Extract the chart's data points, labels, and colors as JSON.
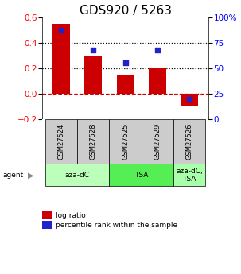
{
  "title": "GDS920 / 5263",
  "samples": [
    "GSM27524",
    "GSM27528",
    "GSM27525",
    "GSM27529",
    "GSM27526"
  ],
  "log_ratios": [
    0.55,
    0.3,
    0.15,
    0.2,
    -0.1
  ],
  "percentile_ranks": [
    88,
    68,
    56,
    68,
    20
  ],
  "bar_color": "#cc0000",
  "dot_color": "#2222cc",
  "ylim_left": [
    -0.2,
    0.6
  ],
  "ylim_right": [
    0,
    100
  ],
  "yticks_left": [
    -0.2,
    0.0,
    0.2,
    0.4,
    0.6
  ],
  "yticks_right": [
    0,
    25,
    50,
    75,
    100
  ],
  "hlines_dotted": [
    0.2,
    0.4
  ],
  "hline_dashed_val": 0.0,
  "agent_groups": [
    {
      "label": "aza-dC",
      "span": [
        0,
        2
      ],
      "color": "#bbffbb"
    },
    {
      "label": "TSA",
      "span": [
        2,
        4
      ],
      "color": "#55ee55"
    },
    {
      "label": "aza-dC,\nTSA",
      "span": [
        4,
        5
      ],
      "color": "#aaffaa"
    }
  ],
  "legend_red_label": "log ratio",
  "legend_blue_label": "percentile rank within the sample",
  "sample_box_color": "#cccccc",
  "title_fontsize": 11,
  "tick_fontsize": 7.5,
  "label_fontsize": 7
}
